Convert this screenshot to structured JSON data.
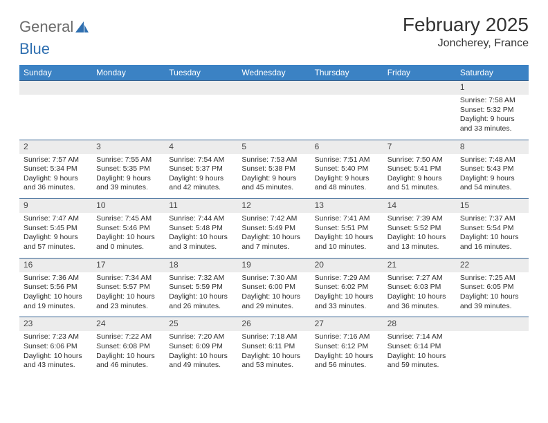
{
  "logo": {
    "text1": "General",
    "text2": "Blue"
  },
  "title": "February 2025",
  "location": "Joncherey, France",
  "colors": {
    "header_bg": "#3b82c4",
    "header_text": "#ffffff",
    "daynum_bg": "#ececec",
    "row_border": "#2f5e8f",
    "body_text": "#2f2f2f",
    "logo_gray": "#6b6b6b",
    "logo_blue": "#2f6fb0"
  },
  "weekdays": [
    "Sunday",
    "Monday",
    "Tuesday",
    "Wednesday",
    "Thursday",
    "Friday",
    "Saturday"
  ],
  "weeks": [
    [
      {
        "num": "",
        "sunrise": "",
        "sunset": "",
        "daylight": ""
      },
      {
        "num": "",
        "sunrise": "",
        "sunset": "",
        "daylight": ""
      },
      {
        "num": "",
        "sunrise": "",
        "sunset": "",
        "daylight": ""
      },
      {
        "num": "",
        "sunrise": "",
        "sunset": "",
        "daylight": ""
      },
      {
        "num": "",
        "sunrise": "",
        "sunset": "",
        "daylight": ""
      },
      {
        "num": "",
        "sunrise": "",
        "sunset": "",
        "daylight": ""
      },
      {
        "num": "1",
        "sunrise": "Sunrise: 7:58 AM",
        "sunset": "Sunset: 5:32 PM",
        "daylight": "Daylight: 9 hours and 33 minutes."
      }
    ],
    [
      {
        "num": "2",
        "sunrise": "Sunrise: 7:57 AM",
        "sunset": "Sunset: 5:34 PM",
        "daylight": "Daylight: 9 hours and 36 minutes."
      },
      {
        "num": "3",
        "sunrise": "Sunrise: 7:55 AM",
        "sunset": "Sunset: 5:35 PM",
        "daylight": "Daylight: 9 hours and 39 minutes."
      },
      {
        "num": "4",
        "sunrise": "Sunrise: 7:54 AM",
        "sunset": "Sunset: 5:37 PM",
        "daylight": "Daylight: 9 hours and 42 minutes."
      },
      {
        "num": "5",
        "sunrise": "Sunrise: 7:53 AM",
        "sunset": "Sunset: 5:38 PM",
        "daylight": "Daylight: 9 hours and 45 minutes."
      },
      {
        "num": "6",
        "sunrise": "Sunrise: 7:51 AM",
        "sunset": "Sunset: 5:40 PM",
        "daylight": "Daylight: 9 hours and 48 minutes."
      },
      {
        "num": "7",
        "sunrise": "Sunrise: 7:50 AM",
        "sunset": "Sunset: 5:41 PM",
        "daylight": "Daylight: 9 hours and 51 minutes."
      },
      {
        "num": "8",
        "sunrise": "Sunrise: 7:48 AM",
        "sunset": "Sunset: 5:43 PM",
        "daylight": "Daylight: 9 hours and 54 minutes."
      }
    ],
    [
      {
        "num": "9",
        "sunrise": "Sunrise: 7:47 AM",
        "sunset": "Sunset: 5:45 PM",
        "daylight": "Daylight: 9 hours and 57 minutes."
      },
      {
        "num": "10",
        "sunrise": "Sunrise: 7:45 AM",
        "sunset": "Sunset: 5:46 PM",
        "daylight": "Daylight: 10 hours and 0 minutes."
      },
      {
        "num": "11",
        "sunrise": "Sunrise: 7:44 AM",
        "sunset": "Sunset: 5:48 PM",
        "daylight": "Daylight: 10 hours and 3 minutes."
      },
      {
        "num": "12",
        "sunrise": "Sunrise: 7:42 AM",
        "sunset": "Sunset: 5:49 PM",
        "daylight": "Daylight: 10 hours and 7 minutes."
      },
      {
        "num": "13",
        "sunrise": "Sunrise: 7:41 AM",
        "sunset": "Sunset: 5:51 PM",
        "daylight": "Daylight: 10 hours and 10 minutes."
      },
      {
        "num": "14",
        "sunrise": "Sunrise: 7:39 AM",
        "sunset": "Sunset: 5:52 PM",
        "daylight": "Daylight: 10 hours and 13 minutes."
      },
      {
        "num": "15",
        "sunrise": "Sunrise: 7:37 AM",
        "sunset": "Sunset: 5:54 PM",
        "daylight": "Daylight: 10 hours and 16 minutes."
      }
    ],
    [
      {
        "num": "16",
        "sunrise": "Sunrise: 7:36 AM",
        "sunset": "Sunset: 5:56 PM",
        "daylight": "Daylight: 10 hours and 19 minutes."
      },
      {
        "num": "17",
        "sunrise": "Sunrise: 7:34 AM",
        "sunset": "Sunset: 5:57 PM",
        "daylight": "Daylight: 10 hours and 23 minutes."
      },
      {
        "num": "18",
        "sunrise": "Sunrise: 7:32 AM",
        "sunset": "Sunset: 5:59 PM",
        "daylight": "Daylight: 10 hours and 26 minutes."
      },
      {
        "num": "19",
        "sunrise": "Sunrise: 7:30 AM",
        "sunset": "Sunset: 6:00 PM",
        "daylight": "Daylight: 10 hours and 29 minutes."
      },
      {
        "num": "20",
        "sunrise": "Sunrise: 7:29 AM",
        "sunset": "Sunset: 6:02 PM",
        "daylight": "Daylight: 10 hours and 33 minutes."
      },
      {
        "num": "21",
        "sunrise": "Sunrise: 7:27 AM",
        "sunset": "Sunset: 6:03 PM",
        "daylight": "Daylight: 10 hours and 36 minutes."
      },
      {
        "num": "22",
        "sunrise": "Sunrise: 7:25 AM",
        "sunset": "Sunset: 6:05 PM",
        "daylight": "Daylight: 10 hours and 39 minutes."
      }
    ],
    [
      {
        "num": "23",
        "sunrise": "Sunrise: 7:23 AM",
        "sunset": "Sunset: 6:06 PM",
        "daylight": "Daylight: 10 hours and 43 minutes."
      },
      {
        "num": "24",
        "sunrise": "Sunrise: 7:22 AM",
        "sunset": "Sunset: 6:08 PM",
        "daylight": "Daylight: 10 hours and 46 minutes."
      },
      {
        "num": "25",
        "sunrise": "Sunrise: 7:20 AM",
        "sunset": "Sunset: 6:09 PM",
        "daylight": "Daylight: 10 hours and 49 minutes."
      },
      {
        "num": "26",
        "sunrise": "Sunrise: 7:18 AM",
        "sunset": "Sunset: 6:11 PM",
        "daylight": "Daylight: 10 hours and 53 minutes."
      },
      {
        "num": "27",
        "sunrise": "Sunrise: 7:16 AM",
        "sunset": "Sunset: 6:12 PM",
        "daylight": "Daylight: 10 hours and 56 minutes."
      },
      {
        "num": "28",
        "sunrise": "Sunrise: 7:14 AM",
        "sunset": "Sunset: 6:14 PM",
        "daylight": "Daylight: 10 hours and 59 minutes."
      },
      {
        "num": "",
        "sunrise": "",
        "sunset": "",
        "daylight": ""
      }
    ]
  ]
}
